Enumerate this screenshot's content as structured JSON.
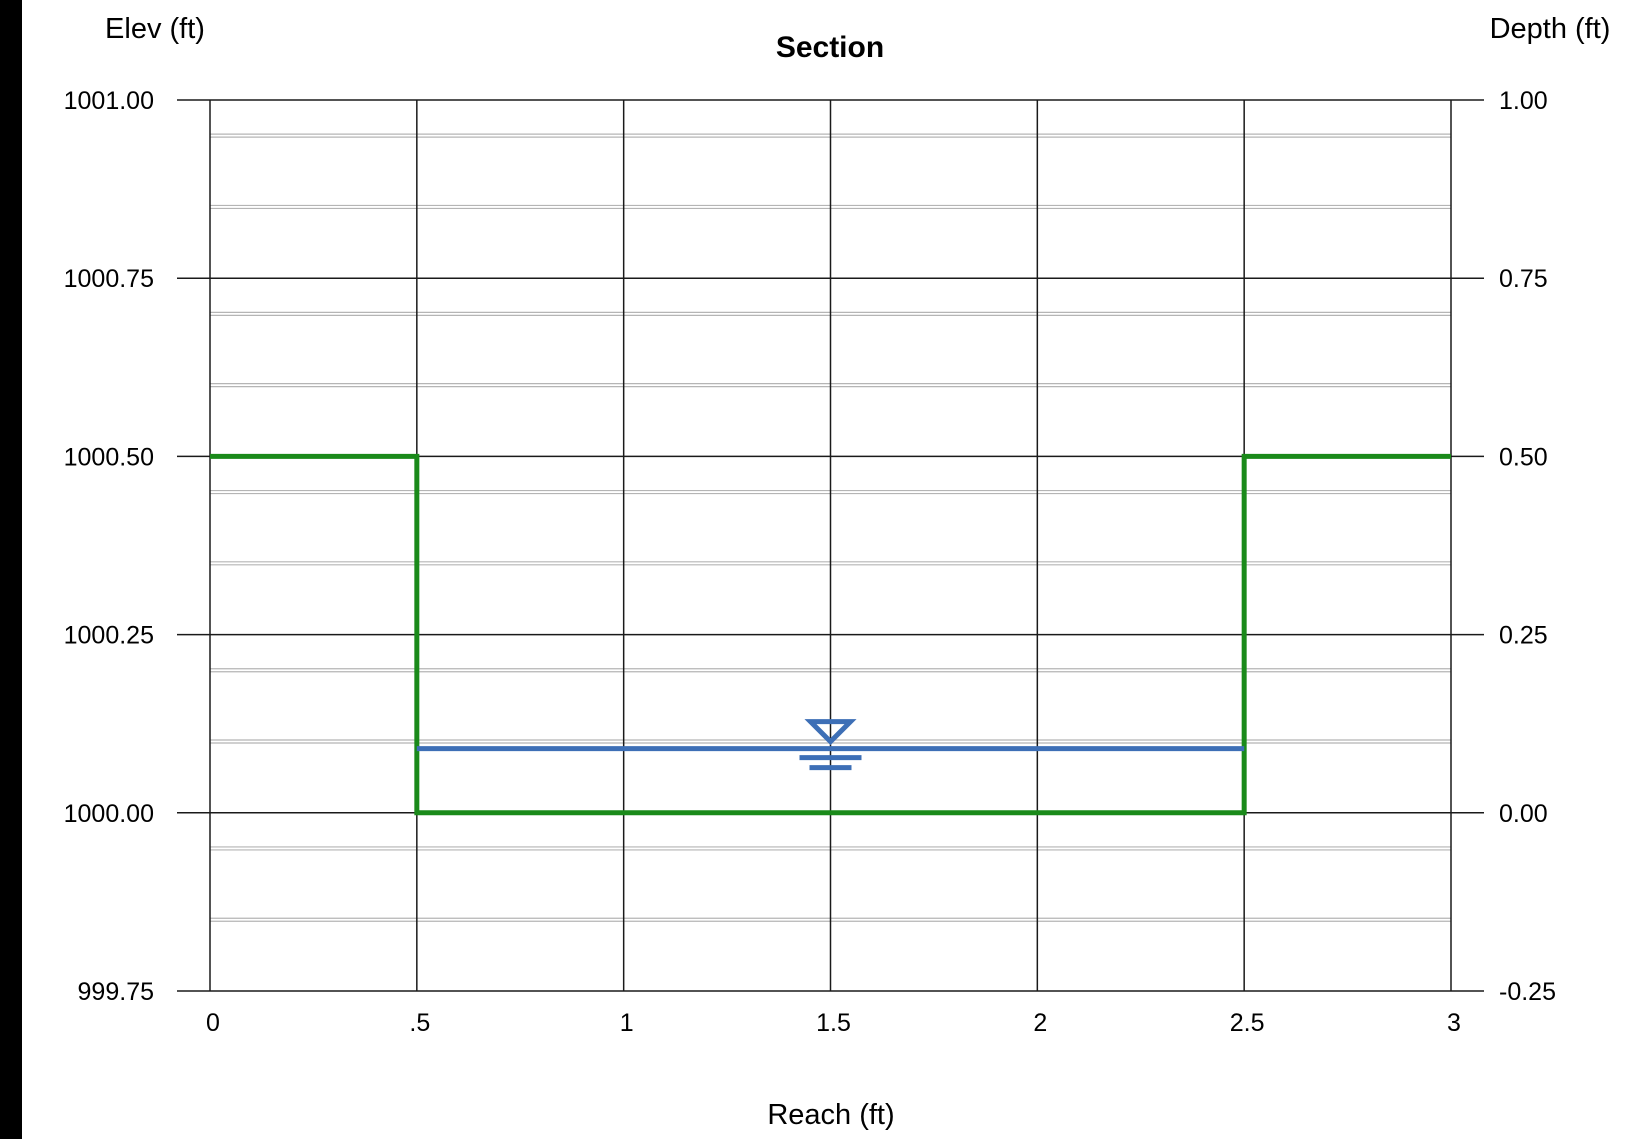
{
  "chart_data": {
    "type": "line",
    "title": "Section",
    "xlabel": "Reach (ft)",
    "ylabel": "Elev (ft)",
    "y2label": "Depth (ft)",
    "xlim": [
      0,
      3
    ],
    "ylim": [
      999.75,
      1001.0
    ],
    "y2lim": [
      -0.25,
      1.0
    ],
    "x_ticks": [
      0,
      0.5,
      1,
      1.5,
      2,
      2.5,
      3
    ],
    "x_tick_labels": [
      "0",
      ".5",
      "1",
      "1.5",
      "2",
      "2.5",
      "3"
    ],
    "y_ticks": [
      999.75,
      1000.0,
      1000.25,
      1000.5,
      1000.75,
      1001.0
    ],
    "y_tick_labels": [
      "999.75",
      "1000.00",
      "1000.25",
      "1000.50",
      "1000.75",
      "1001.00"
    ],
    "y2_tick_labels": [
      "-0.25",
      "0.00",
      "0.25",
      "0.50",
      "0.75",
      "1.00"
    ],
    "minor_y_ticks": [
      999.85,
      999.95,
      1000.1,
      1000.2,
      1000.35,
      1000.45,
      1000.6,
      1000.7,
      1000.85,
      1000.95
    ],
    "grid": true,
    "series": [
      {
        "role": "channel-section",
        "color": "#1a8a1a",
        "x": [
          0,
          0.5,
          0.5,
          2.5,
          2.5,
          3
        ],
        "y": [
          1000.5,
          1000.5,
          1000.0,
          1000.0,
          1000.5,
          1000.5
        ]
      },
      {
        "role": "water-surface",
        "color": "#3d6fb6",
        "x": [
          0.5,
          2.5
        ],
        "y": [
          1000.09,
          1000.09
        ]
      }
    ],
    "water_surface_marker": {
      "x": 1.5,
      "y": 1000.09,
      "icon": "water-level-triangle-icon",
      "color": "#3d6fb6"
    }
  }
}
